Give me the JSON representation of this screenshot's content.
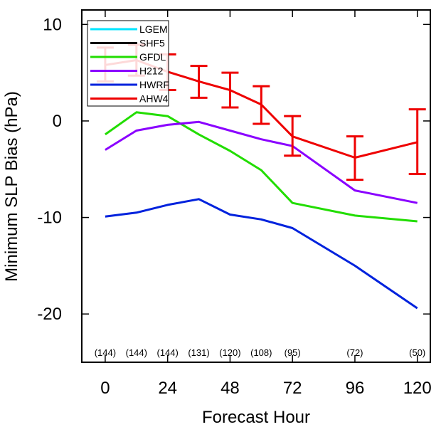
{
  "chart_data": {
    "type": "line",
    "title": "",
    "xlabel": "Forecast Hour",
    "ylabel": "Minimum SLP Bias (hPa)",
    "xlim": [
      -9,
      125
    ],
    "ylim": [
      -25,
      11.5
    ],
    "xticks": [
      0,
      24,
      48,
      72,
      96,
      120
    ],
    "yticks": [
      10,
      0,
      -10,
      -20
    ],
    "grid": false,
    "legend_position": "top-left",
    "counts": {
      "x": [
        0,
        12,
        24,
        36,
        48,
        60,
        72,
        96,
        120
      ],
      "labels": [
        "(144)",
        "(144)",
        "(144)",
        "(131)",
        "(120)",
        "(108)",
        "(95)",
        "(72)",
        "(50)"
      ]
    },
    "series": [
      {
        "name": "LGEM",
        "color": "#00e5ff",
        "x": [],
        "y": []
      },
      {
        "name": "SHF5",
        "color": "#000000",
        "x": [],
        "y": []
      },
      {
        "name": "GFDL",
        "color": "#22dd00",
        "x": [
          0,
          12,
          24,
          36,
          48,
          60,
          72,
          96,
          120
        ],
        "y": [
          -1.4,
          0.9,
          0.5,
          -1.4,
          -3.1,
          -5.1,
          -8.5,
          -9.8,
          -10.4
        ]
      },
      {
        "name": "H212",
        "color": "#8a00ff",
        "x": [
          0,
          12,
          24,
          36,
          48,
          60,
          72,
          96,
          120
        ],
        "y": [
          -3.0,
          -1.0,
          -0.4,
          -0.1,
          -1.0,
          -1.9,
          -2.6,
          -7.2,
          -8.5
        ]
      },
      {
        "name": "HWRF",
        "color": "#0022dd",
        "x": [
          0,
          12,
          24,
          36,
          48,
          60,
          72,
          96,
          120
        ],
        "y": [
          -9.9,
          -9.5,
          -8.7,
          -8.1,
          -9.7,
          -10.2,
          -11.1,
          -15.0,
          -19.4
        ]
      },
      {
        "name": "AHW4",
        "color": "#ee0000",
        "x": [
          0,
          12,
          24,
          36,
          48,
          60,
          72,
          96,
          120
        ],
        "y": [
          5.8,
          6.3,
          5.1,
          4.1,
          3.2,
          1.7,
          -1.6,
          -3.8,
          -2.2
        ],
        "err_low": [
          4.1,
          4.7,
          3.2,
          2.4,
          1.4,
          -0.3,
          -3.6,
          -6.1,
          -5.5
        ],
        "err_high": [
          7.6,
          7.9,
          6.9,
          5.7,
          5.0,
          3.6,
          0.5,
          -1.6,
          1.2
        ]
      }
    ]
  }
}
